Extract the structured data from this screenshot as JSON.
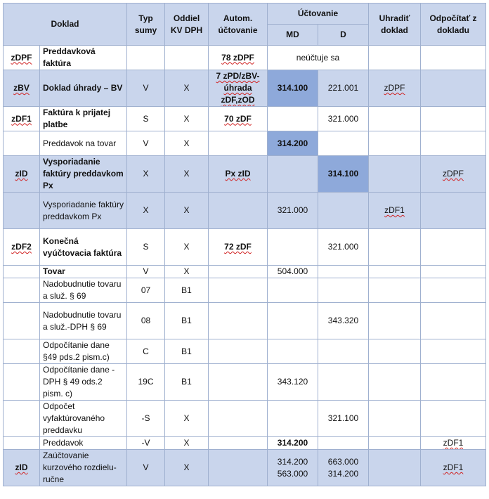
{
  "headers": {
    "doklad": "Doklad",
    "typ_sumy": "Typ sumy",
    "oddiel": "Oddiel KV DPH",
    "autom": "Autom. účtovanie",
    "uctovanie": "Účtovanie",
    "md": "MD",
    "d": "D",
    "uhradit": "Uhradiť doklad",
    "odpocitat": "Odpočítať z dokladu"
  },
  "rows": [
    {
      "code": "zDPF",
      "name": "Preddavková faktúra",
      "name_bold": true,
      "typ": "",
      "kv": "",
      "autom": "78 zDPF",
      "md": "",
      "d": "",
      "merged_note": "neúčtuje sa",
      "uhradit": "",
      "odpocitat": "",
      "hl": false,
      "h": 35
    },
    {
      "code": "zBV",
      "name": "Doklad úhrady – BV",
      "name_bold": true,
      "typ": "V",
      "kv": "X",
      "autom": "7 zPD/zBV-úhrada zDF,zOD",
      "md": "314.100",
      "d": "221.001",
      "uhradit": "zDPF",
      "odpocitat": "",
      "hl": true,
      "md_dark": true,
      "md_bold": true,
      "h": 52
    },
    {
      "code": "zDF1",
      "name": "Faktúra k prijatej platbe",
      "name_bold": true,
      "typ": "S",
      "kv": "X",
      "autom": "70 zDF",
      "md": "",
      "d": "321.000",
      "uhradit": "",
      "odpocitat": "",
      "hl": false,
      "h": 35
    },
    {
      "code": "",
      "name": "Preddavok na tovar",
      "name_bold": false,
      "typ": "V",
      "kv": "X",
      "autom": "",
      "md": "314.200",
      "d": "",
      "uhradit": "",
      "odpocitat": "",
      "hl": false,
      "md_dark": true,
      "md_bold": true,
      "h": 35
    },
    {
      "code": "zID",
      "name": "Vysporiadanie faktúry preddavkom Px",
      "name_bold": true,
      "typ": "X",
      "kv": "X",
      "autom": "Px zID",
      "md": "",
      "d": "314.100",
      "uhradit": "",
      "odpocitat": "zDPF",
      "hl": true,
      "d_dark": true,
      "d_bold": true,
      "h": 52
    },
    {
      "code": "",
      "name": "Vysporiadanie faktúry preddavkom Px",
      "name_bold": false,
      "typ": "X",
      "kv": "X",
      "autom": "",
      "md": "321.000",
      "d": "",
      "uhradit": "zDF1",
      "odpocitat": "",
      "hl": true,
      "h": 52
    },
    {
      "code": "zDF2",
      "name": "Konečná vyúčtovacia faktúra",
      "name_bold": true,
      "typ": "S",
      "kv": "X",
      "autom": "72 zDF",
      "md": "",
      "d": "321.000",
      "uhradit": "",
      "odpocitat": "",
      "hl": false,
      "h": 52
    },
    {
      "code": "",
      "name": "Tovar",
      "name_bold": true,
      "typ": "V",
      "kv": "X",
      "autom": "",
      "md": "504.000",
      "d": "",
      "uhradit": "",
      "odpocitat": "",
      "hl": false,
      "h": 18
    },
    {
      "code": "",
      "name": "Nadobudnutie tovaru a služ. § 69",
      "name_bold": false,
      "typ": "07",
      "kv": "B1",
      "autom": "",
      "md": "",
      "d": "",
      "uhradit": "",
      "odpocitat": "",
      "hl": false,
      "h": 35
    },
    {
      "code": "",
      "name": "Nadobudnutie tovaru a služ.-DPH § 69",
      "name_bold": false,
      "typ": "08",
      "kv": "B1",
      "autom": "",
      "md": "",
      "d": "343.320",
      "uhradit": "",
      "odpocitat": "",
      "hl": false,
      "h": 52
    },
    {
      "code": "",
      "name": "Odpočítanie dane §49 pds.2 pism.c)",
      "name_bold": false,
      "typ": "C",
      "kv": "B1",
      "autom": "",
      "md": "",
      "d": "",
      "uhradit": "",
      "odpocitat": "",
      "hl": false,
      "h": 35
    },
    {
      "code": "",
      "name": "Odpočítanie dane -DPH § 49 ods.2 pism. c)",
      "name_bold": false,
      "typ": "19C",
      "kv": "B1",
      "autom": "",
      "md": "343.120",
      "d": "",
      "uhradit": "",
      "odpocitat": "",
      "hl": false,
      "h": 52
    },
    {
      "code": "",
      "name": "Odpočet vyfaktúrovaného preddavku",
      "name_bold": false,
      "typ": "-S",
      "kv": "X",
      "autom": "",
      "md": "",
      "d": "321.100",
      "uhradit": "",
      "odpocitat": "",
      "hl": false,
      "h": 52
    },
    {
      "code": "",
      "name": "Preddavok",
      "name_bold": false,
      "typ": "-V",
      "kv": "X",
      "autom": "",
      "md": "314.200",
      "d": "",
      "uhradit": "",
      "odpocitat": "zDF1",
      "hl": false,
      "md_bold": true,
      "h": 18
    },
    {
      "code": "zID",
      "name": "Zaúčtovanie kurzového rozdielu-ručne",
      "name_bold": false,
      "typ": "V",
      "kv": "X",
      "autom": "",
      "md": "314.200\n563.000",
      "d": "663.000\n314.200",
      "uhradit": "",
      "odpocitat": "zDF1",
      "hl": true,
      "h": 52
    }
  ]
}
